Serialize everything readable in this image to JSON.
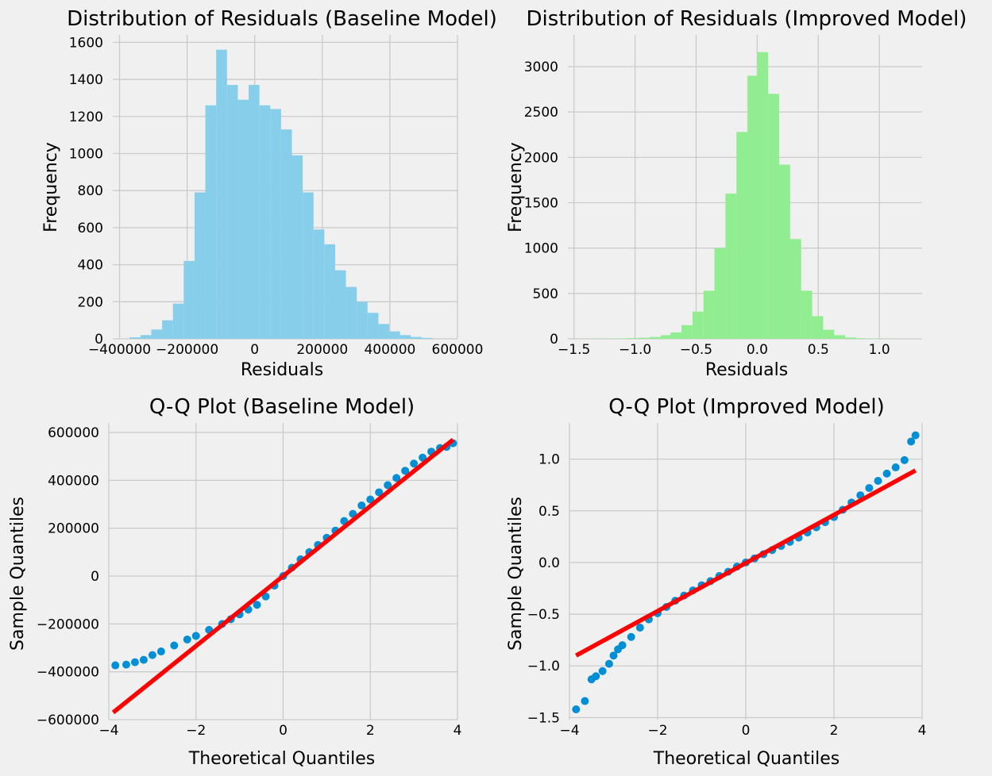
{
  "colors": {
    "background": "#f0f0f0",
    "grid": "#cbcbcb",
    "hist_baseline": "#87ceeb",
    "hist_improved": "#90ee90",
    "qq_points": "#008fd5",
    "qq_line": "#ff0000"
  },
  "chart_data": [
    {
      "type": "bar",
      "title": "Distribution of Residuals (Baseline Model)",
      "xlabel": "Residuals",
      "ylabel": "Frequency",
      "xlim": [
        -420000,
        600000
      ],
      "ylim": [
        0,
        1640
      ],
      "xticks": [
        -400000,
        -200000,
        0,
        200000,
        400000,
        600000
      ],
      "xtick_labels": [
        "−400000",
        "−200000",
        "0",
        "200000",
        "400000",
        "600000"
      ],
      "yticks": [
        0,
        200,
        400,
        600,
        800,
        1000,
        1200,
        1400,
        1600
      ],
      "ytick_labels": [
        "0",
        "200",
        "400",
        "600",
        "800",
        "1000",
        "1200",
        "1400",
        "1600"
      ],
      "grid": true,
      "bin_edges": [
        -370000,
        -338000,
        -306000,
        -274000,
        -242000,
        -210000,
        -178000,
        -146000,
        -114000,
        -82000,
        -50000,
        -18000,
        14000,
        46000,
        78000,
        110000,
        142000,
        174000,
        206000,
        238000,
        270000,
        302000,
        334000,
        366000,
        398000,
        430000,
        462000,
        494000,
        526000
      ],
      "counts": [
        8,
        20,
        50,
        100,
        190,
        420,
        790,
        1260,
        1560,
        1370,
        1290,
        1370,
        1260,
        1240,
        1130,
        990,
        790,
        590,
        510,
        370,
        280,
        200,
        140,
        80,
        40,
        20,
        10,
        5
      ]
    },
    {
      "type": "bar",
      "title": "Distribution of Residuals (Improved Model)",
      "xlabel": "Residuals",
      "ylabel": "Frequency",
      "xlim": [
        -1.55,
        1.35
      ],
      "ylim": [
        0,
        3350
      ],
      "xticks": [
        -1.5,
        -1.0,
        -0.5,
        0.0,
        0.5,
        1.0
      ],
      "xtick_labels": [
        "−1.5",
        "−1.0",
        "−0.5",
        "0.0",
        "0.5",
        "1.0"
      ],
      "yticks": [
        0,
        500,
        1000,
        1500,
        2000,
        2500,
        3000
      ],
      "ytick_labels": [
        "0",
        "500",
        "1000",
        "1500",
        "2000",
        "2500",
        "3000"
      ],
      "grid": true,
      "bin_edges": [
        -1.42,
        -1.33,
        -1.24,
        -1.15,
        -1.06,
        -0.97,
        -0.88,
        -0.79,
        -0.71,
        -0.62,
        -0.53,
        -0.44,
        -0.35,
        -0.26,
        -0.17,
        -0.08,
        0.0,
        0.09,
        0.18,
        0.27,
        0.36,
        0.45,
        0.54,
        0.63,
        0.72,
        0.81,
        0.9,
        0.99,
        1.08,
        1.17,
        1.26
      ],
      "counts": [
        2,
        2,
        3,
        5,
        8,
        12,
        20,
        40,
        70,
        150,
        300,
        530,
        1000,
        1600,
        2280,
        2900,
        3160,
        2700,
        1920,
        1100,
        530,
        250,
        100,
        40,
        15,
        6,
        3,
        2,
        1,
        1
      ]
    },
    {
      "type": "scatter",
      "title": "Q-Q Plot (Baseline Model)",
      "xlabel": "Theoretical Quantiles",
      "ylabel": "Sample Quantiles",
      "xlim": [
        -4,
        4
      ],
      "ylim": [
        -600000,
        640000
      ],
      "xticks": [
        -4,
        -2,
        0,
        2,
        4
      ],
      "xtick_labels": [
        "−4",
        "−2",
        "0",
        "2",
        "4"
      ],
      "yticks": [
        -600000,
        -400000,
        -200000,
        0,
        200000,
        400000,
        600000
      ],
      "ytick_labels": [
        "−600000",
        "−400000",
        "−200000",
        "0",
        "200000",
        "400000",
        "600000"
      ],
      "grid": true,
      "points": [
        [
          -3.85,
          -373000
        ],
        [
          -3.6,
          -370000
        ],
        [
          -3.4,
          -360000
        ],
        [
          -3.2,
          -350000
        ],
        [
          -3.0,
          -330000
        ],
        [
          -2.8,
          -315000
        ],
        [
          -2.5,
          -290000
        ],
        [
          -2.2,
          -265000
        ],
        [
          -2.0,
          -250000
        ],
        [
          -1.7,
          -225000
        ],
        [
          -1.4,
          -200000
        ],
        [
          -1.2,
          -180000
        ],
        [
          -1.0,
          -160000
        ],
        [
          -0.8,
          -140000
        ],
        [
          -0.6,
          -120000
        ],
        [
          -0.4,
          -85000
        ],
        [
          -0.2,
          -40000
        ],
        [
          0.0,
          0
        ],
        [
          0.2,
          35000
        ],
        [
          0.4,
          70000
        ],
        [
          0.6,
          100000
        ],
        [
          0.8,
          130000
        ],
        [
          1.0,
          160000
        ],
        [
          1.2,
          190000
        ],
        [
          1.4,
          230000
        ],
        [
          1.6,
          260000
        ],
        [
          1.8,
          295000
        ],
        [
          2.0,
          320000
        ],
        [
          2.2,
          350000
        ],
        [
          2.4,
          380000
        ],
        [
          2.6,
          410000
        ],
        [
          2.8,
          440000
        ],
        [
          3.0,
          470000
        ],
        [
          3.2,
          495000
        ],
        [
          3.4,
          520000
        ],
        [
          3.6,
          535000
        ],
        [
          3.75,
          540000
        ],
        [
          3.9,
          555000
        ]
      ],
      "reference_line": [
        [
          -3.9,
          -570000
        ],
        [
          3.9,
          570000
        ]
      ]
    },
    {
      "type": "scatter",
      "title": "Q-Q Plot (Improved Model)",
      "xlabel": "Theoretical Quantiles",
      "ylabel": "Sample Quantiles",
      "xlim": [
        -4,
        4
      ],
      "ylim": [
        -1.52,
        1.35
      ],
      "xticks": [
        -4,
        -2,
        0,
        2,
        4
      ],
      "xtick_labels": [
        "−4",
        "−2",
        "0",
        "2",
        "4"
      ],
      "yticks": [
        -1.5,
        -1.0,
        -0.5,
        0.0,
        0.5,
        1.0
      ],
      "ytick_labels": [
        "−1.5",
        "−1.0",
        "−0.5",
        "0.0",
        "0.5",
        "1.0"
      ],
      "grid": true,
      "points": [
        [
          -3.85,
          -1.42
        ],
        [
          -3.65,
          -1.34
        ],
        [
          -3.5,
          -1.13
        ],
        [
          -3.4,
          -1.1
        ],
        [
          -3.25,
          -1.05
        ],
        [
          -3.1,
          -0.98
        ],
        [
          -3.0,
          -0.9
        ],
        [
          -2.9,
          -0.84
        ],
        [
          -2.8,
          -0.8
        ],
        [
          -2.6,
          -0.72
        ],
        [
          -2.4,
          -0.63
        ],
        [
          -2.2,
          -0.55
        ],
        [
          -2.0,
          -0.49
        ],
        [
          -1.8,
          -0.43
        ],
        [
          -1.6,
          -0.37
        ],
        [
          -1.4,
          -0.32
        ],
        [
          -1.2,
          -0.27
        ],
        [
          -1.0,
          -0.22
        ],
        [
          -0.8,
          -0.18
        ],
        [
          -0.6,
          -0.13
        ],
        [
          -0.4,
          -0.09
        ],
        [
          -0.2,
          -0.04
        ],
        [
          0.0,
          0.0
        ],
        [
          0.2,
          0.04
        ],
        [
          0.4,
          0.08
        ],
        [
          0.6,
          0.12
        ],
        [
          0.8,
          0.16
        ],
        [
          1.0,
          0.2
        ],
        [
          1.2,
          0.24
        ],
        [
          1.4,
          0.29
        ],
        [
          1.6,
          0.34
        ],
        [
          1.8,
          0.39
        ],
        [
          2.0,
          0.44
        ],
        [
          2.2,
          0.51
        ],
        [
          2.4,
          0.58
        ],
        [
          2.6,
          0.65
        ],
        [
          2.8,
          0.72
        ],
        [
          3.0,
          0.79
        ],
        [
          3.2,
          0.86
        ],
        [
          3.4,
          0.92
        ],
        [
          3.6,
          0.99
        ],
        [
          3.75,
          1.17
        ],
        [
          3.85,
          1.23
        ]
      ],
      "reference_line": [
        [
          -3.85,
          -0.9
        ],
        [
          3.85,
          0.89
        ]
      ]
    }
  ]
}
